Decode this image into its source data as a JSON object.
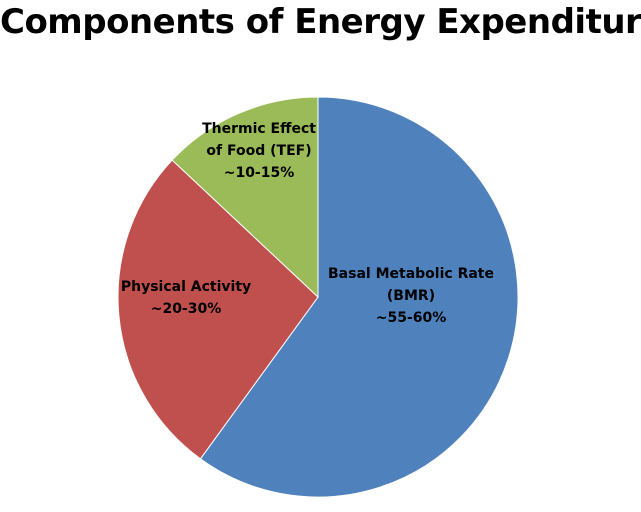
{
  "chart_data": {
    "type": "pie",
    "title": "Components of Energy Expenditure",
    "slices": [
      {
        "name": "Basal Metabolic Rate (BMR)",
        "label_lines": [
          "Basal Metabolic Rate",
          "(BMR)",
          "~55-60%"
        ],
        "value": 60,
        "color": "#4F81BD"
      },
      {
        "name": "Physical Activity",
        "label_lines": [
          "Physical Activity",
          "~20-30%"
        ],
        "value": 27,
        "color": "#C0504D"
      },
      {
        "name": "Thermic Effect of Food (TEF)",
        "label_lines": [
          "Thermic Effect",
          "of Food  (TEF)",
          "~10-15%"
        ],
        "value": 13,
        "color": "#9BBB59"
      }
    ],
    "start": "12 o'clock",
    "direction": "clockwise",
    "legend": "none"
  }
}
